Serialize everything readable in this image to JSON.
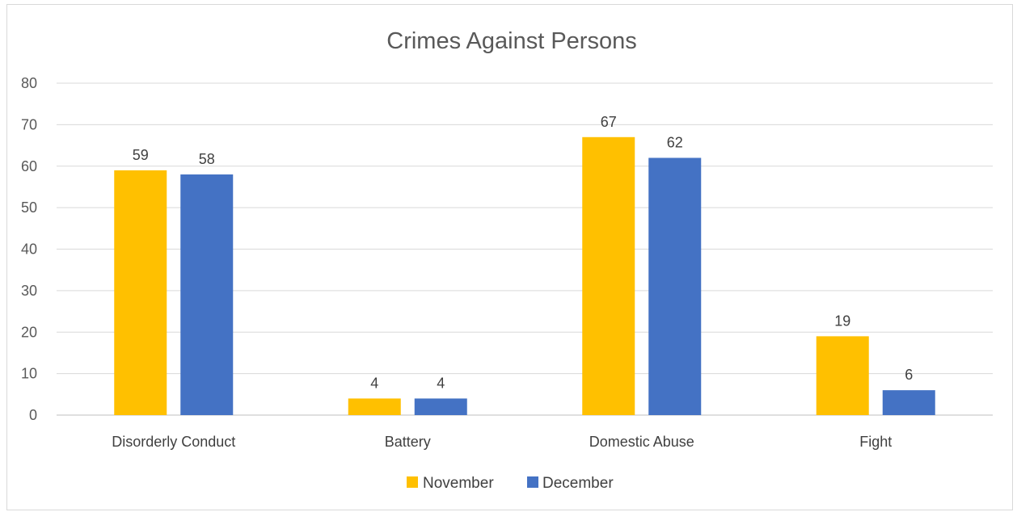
{
  "chart_data": {
    "type": "bar",
    "title": "Crimes Against Persons",
    "categories": [
      "Disorderly Conduct",
      "Battery",
      "Domestic Abuse",
      "Fight"
    ],
    "series": [
      {
        "name": "November",
        "values": [
          59,
          4,
          67,
          19
        ],
        "color": "#FFC000"
      },
      {
        "name": "December",
        "values": [
          58,
          4,
          62,
          6
        ],
        "color": "#4472C4"
      }
    ],
    "xlabel": "",
    "ylabel": "",
    "ylim": [
      0,
      80
    ],
    "yticks": [
      0,
      10,
      20,
      30,
      40,
      50,
      60,
      70,
      80
    ],
    "grid": true,
    "data_labels": true,
    "legend_position": "bottom",
    "colors": {
      "grid": "#d9d9d9",
      "axis": "#bfbfbf"
    }
  }
}
